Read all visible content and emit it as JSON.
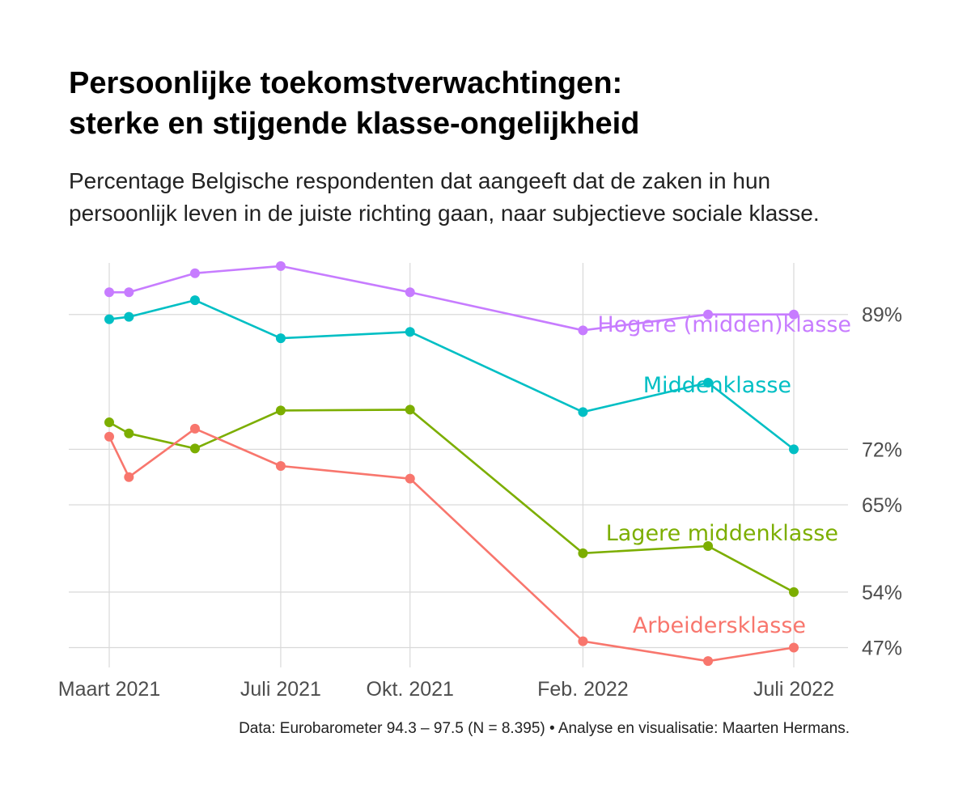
{
  "title_lines": [
    "Persoonlijke toekomstverwachtingen:",
    "sterke en stijgende klasse-ongelijkheid"
  ],
  "subtitle_lines": [
    "Percentage Belgische respondenten dat aangeeft dat de zaken in hun",
    "persoonlijk leven in de juiste richting gaan, naar subjectieve sociale klasse."
  ],
  "caption": "Data: Eurobarometer 94.3 – 97.5 (N = 8.395) • Analyse en visualisatie: Maarten Hermans.",
  "chart_data": {
    "type": "line",
    "x_axis": {
      "scale": "date",
      "ticks": [
        {
          "date": "2021-03-01",
          "label": "Maart 2021"
        },
        {
          "date": "2021-07-01",
          "label": "Juli 2021"
        },
        {
          "date": "2021-10-01",
          "label": "Okt. 2021"
        },
        {
          "date": "2022-02-01",
          "label": "Feb. 2022"
        },
        {
          "date": "2022-07-01",
          "label": "Juli 2022"
        }
      ]
    },
    "y_axis": {
      "unit": "%",
      "ticks": [
        47,
        54,
        65,
        72,
        89
      ],
      "tick_labels": [
        "47%",
        "54%",
        "65%",
        "72%",
        "89%"
      ],
      "position": "right"
    },
    "ylim": [
      44.5,
      95.5
    ],
    "grid": true,
    "legend": "direct labels at line ends",
    "series": [
      {
        "name": "Hogere (midden)klasse",
        "color": "#C77CFF",
        "x": [
          "2021-03-01",
          "2021-03-15",
          "2021-05-01",
          "2021-07-01",
          "2021-10-01",
          "2022-02-01",
          "2022-05-01",
          "2022-07-01"
        ],
        "values": [
          91.8,
          91.8,
          94.2,
          95.1,
          91.8,
          87.0,
          89.0,
          89.0
        ]
      },
      {
        "name": "Middenklasse",
        "color": "#00BFC4",
        "x": [
          "2021-03-01",
          "2021-03-15",
          "2021-05-01",
          "2021-07-01",
          "2021-10-01",
          "2022-02-01",
          "2022-05-01",
          "2022-07-01"
        ],
        "values": [
          88.4,
          88.7,
          90.8,
          86.0,
          86.8,
          76.7,
          80.4,
          72.0
        ]
      },
      {
        "name": "Lagere middenklasse",
        "color": "#7CAE00",
        "x": [
          "2021-03-01",
          "2021-03-15",
          "2021-05-01",
          "2021-07-01",
          "2021-10-01",
          "2022-02-01",
          "2022-05-01",
          "2022-07-01"
        ],
        "values": [
          75.4,
          74.0,
          72.1,
          76.9,
          77.0,
          58.9,
          59.8,
          54.0
        ]
      },
      {
        "name": "Arbeidersklasse",
        "color": "#F8766D",
        "x": [
          "2021-03-01",
          "2021-03-15",
          "2021-05-01",
          "2021-07-01",
          "2021-10-01",
          "2022-02-01",
          "2022-05-01",
          "2022-07-01"
        ],
        "values": [
          73.6,
          68.5,
          74.6,
          69.9,
          68.3,
          47.8,
          45.3,
          47.0
        ]
      }
    ]
  }
}
